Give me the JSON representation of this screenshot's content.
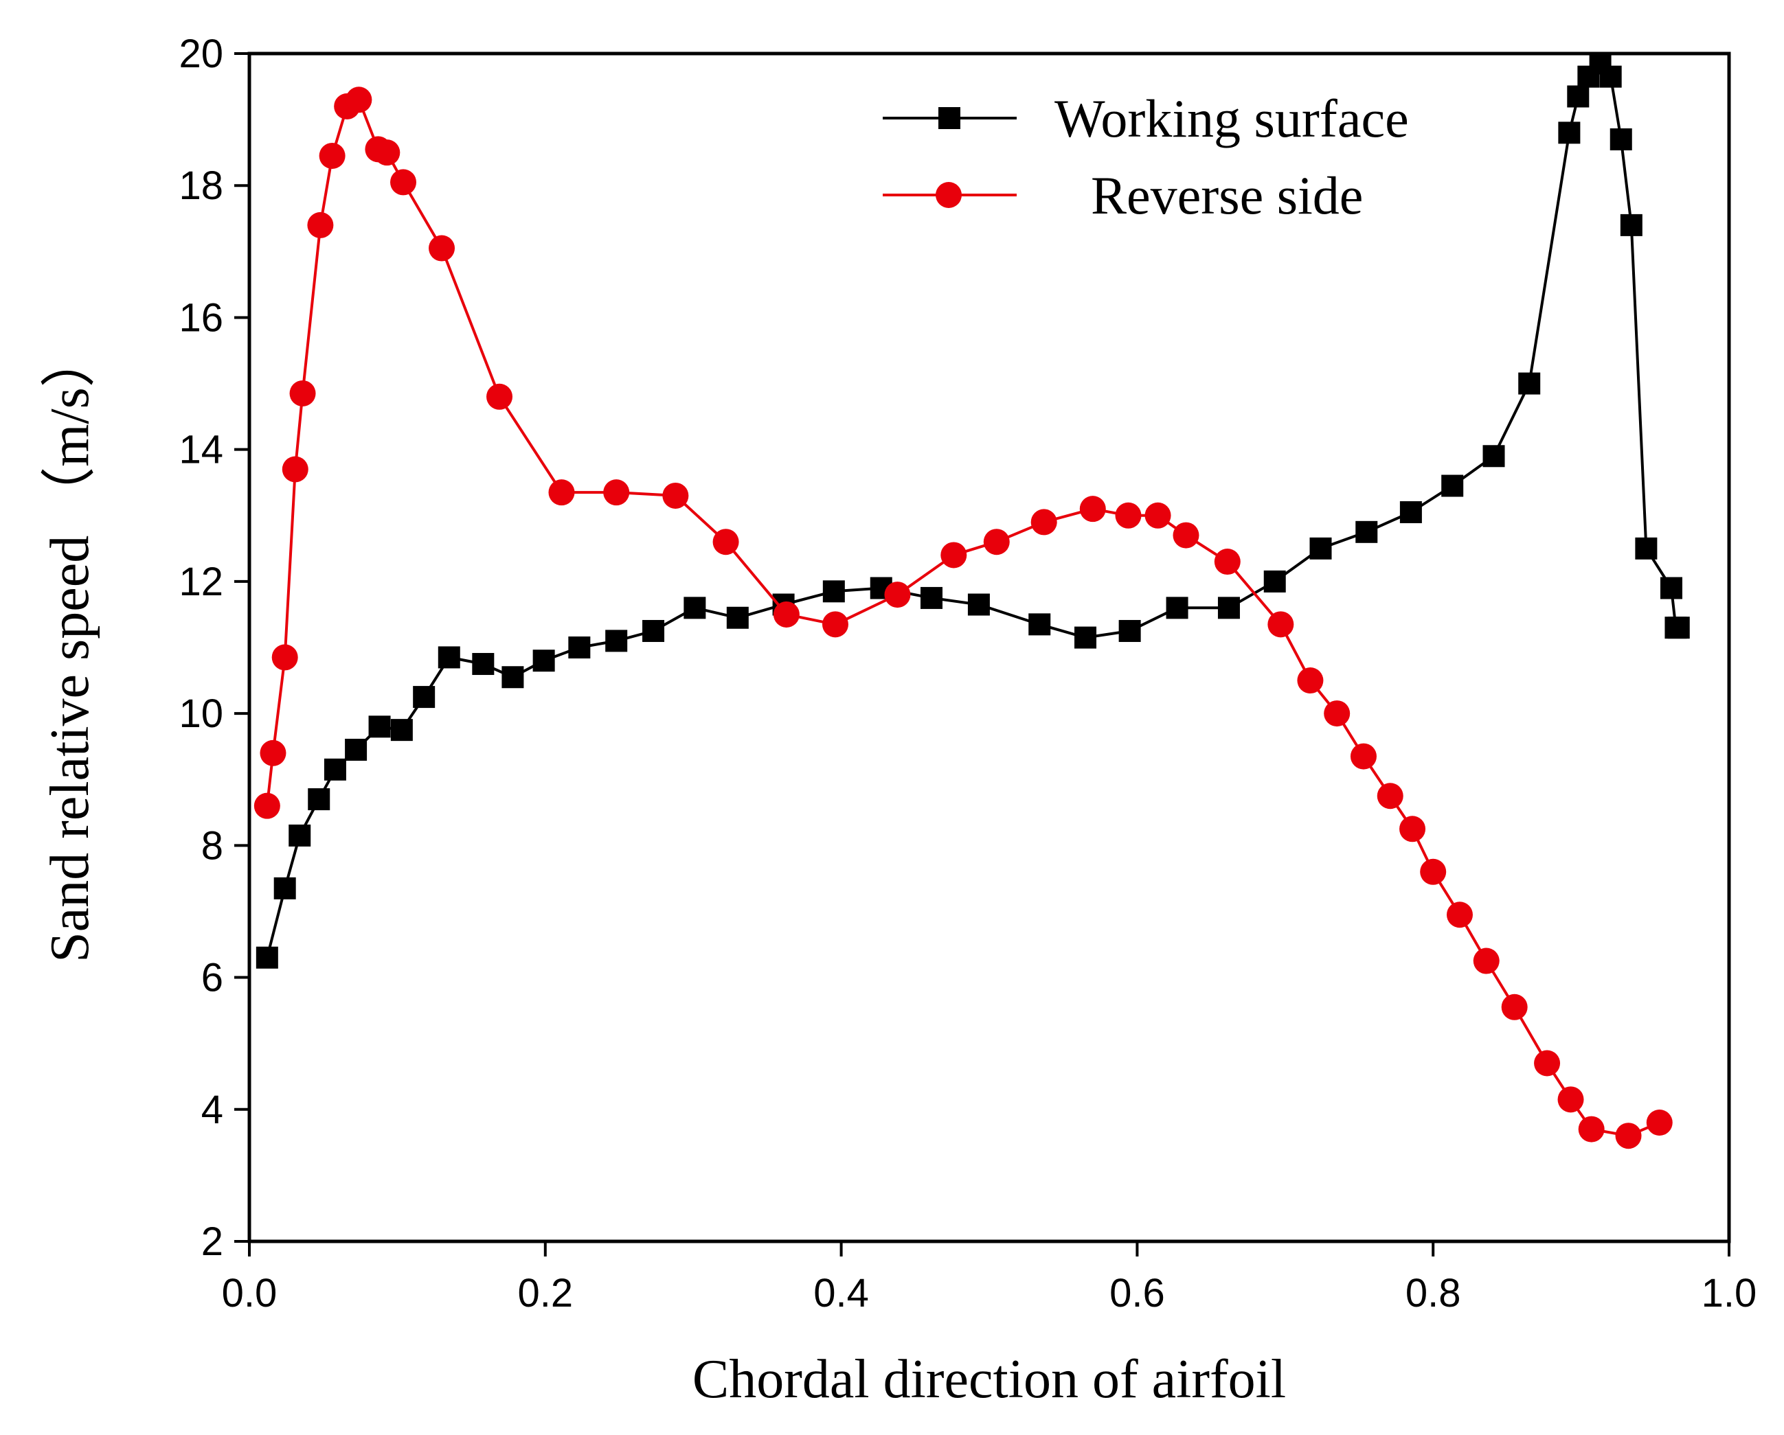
{
  "chart_data": {
    "type": "line",
    "title": "",
    "xlabel": "Chordal direction of airfoil",
    "ylabel": "Sand relative speed （m/s）",
    "xlim": [
      0.0,
      1.0
    ],
    "ylim": [
      2,
      20
    ],
    "xticks": [
      0.0,
      0.2,
      0.4,
      0.6,
      0.8,
      1.0
    ],
    "xtick_labels": [
      "0.0",
      "0.2",
      "0.4",
      "0.6",
      "0.8",
      "1.0"
    ],
    "yticks": [
      2,
      4,
      6,
      8,
      10,
      12,
      14,
      16,
      18,
      20
    ],
    "ytick_labels": [
      "2",
      "4",
      "6",
      "8",
      "10",
      "12",
      "14",
      "16",
      "18",
      "20"
    ],
    "grid": false,
    "legend_position": "top-right",
    "series": [
      {
        "name": "Working surface",
        "color": "#000000",
        "marker": "square",
        "x": [
          0.012,
          0.024,
          0.034,
          0.047,
          0.058,
          0.072,
          0.088,
          0.103,
          0.118,
          0.135,
          0.158,
          0.178,
          0.199,
          0.223,
          0.248,
          0.273,
          0.301,
          0.33,
          0.361,
          0.395,
          0.427,
          0.461,
          0.493,
          0.534,
          0.565,
          0.595,
          0.627,
          0.662,
          0.693,
          0.724,
          0.755,
          0.785,
          0.813,
          0.841,
          0.865,
          0.892,
          0.898,
          0.905,
          0.913,
          0.92,
          0.927,
          0.934,
          0.944,
          0.961,
          0.964,
          0.966
        ],
        "y": [
          6.3,
          7.35,
          8.15,
          8.7,
          9.15,
          9.45,
          9.8,
          9.75,
          10.25,
          10.85,
          10.75,
          10.55,
          10.8,
          11.0,
          11.1,
          11.25,
          11.6,
          11.45,
          11.65,
          11.85,
          11.9,
          11.75,
          11.65,
          11.35,
          11.15,
          11.25,
          11.6,
          11.6,
          12.0,
          12.5,
          12.75,
          13.05,
          13.45,
          13.9,
          15.0,
          18.8,
          19.35,
          19.65,
          19.85,
          19.65,
          18.7,
          17.4,
          12.5,
          11.9,
          11.3,
          11.3
        ]
      },
      {
        "name": "Reverse side",
        "color": "#e8000b",
        "marker": "circle",
        "x": [
          0.012,
          0.016,
          0.024,
          0.031,
          0.036,
          0.048,
          0.056,
          0.066,
          0.074,
          0.087,
          0.093,
          0.104,
          0.13,
          0.169,
          0.211,
          0.248,
          0.288,
          0.322,
          0.363,
          0.396,
          0.438,
          0.476,
          0.505,
          0.537,
          0.57,
          0.594,
          0.614,
          0.633,
          0.661,
          0.697,
          0.717,
          0.735,
          0.753,
          0.771,
          0.786,
          0.8,
          0.818,
          0.836,
          0.855,
          0.877,
          0.893,
          0.907,
          0.932,
          0.953
        ],
        "y": [
          8.6,
          9.4,
          10.85,
          13.7,
          14.85,
          17.4,
          18.45,
          19.2,
          19.3,
          18.55,
          18.5,
          18.05,
          17.05,
          14.8,
          13.35,
          13.35,
          13.3,
          12.6,
          11.5,
          11.35,
          11.8,
          12.4,
          12.6,
          12.9,
          13.1,
          13.0,
          13.0,
          12.7,
          12.3,
          11.35,
          10.5,
          10.0,
          9.35,
          8.75,
          8.25,
          7.6,
          6.95,
          6.25,
          5.55,
          4.7,
          4.15,
          3.7,
          3.6,
          3.8
        ]
      }
    ]
  }
}
